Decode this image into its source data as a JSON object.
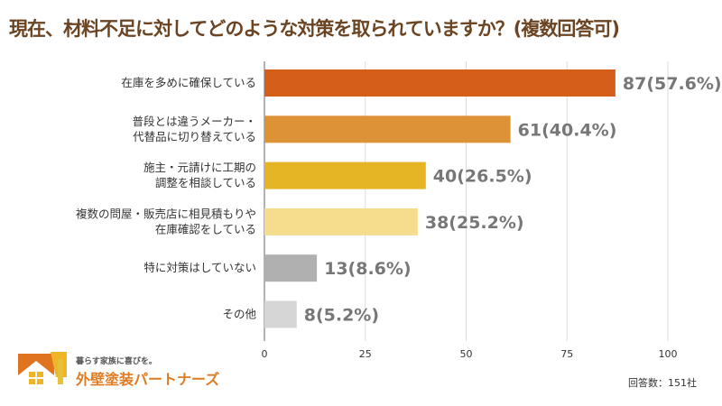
{
  "title": "現在、材料不足に対してどのような対策を取られていますか？(複数回答可)",
  "chart_data": {
    "type": "bar",
    "orientation": "horizontal",
    "title": "現在、材料不足に対してどのような対策を取られていますか？(複数回答可)",
    "categories": [
      [
        "在庫を多めに確保している"
      ],
      [
        "普段とは違うメーカー・",
        "代替品に切り替えている"
      ],
      [
        "施主・元請けに工期の",
        "調整を相談している"
      ],
      [
        "複数の問屋・販売店に相見積もりや",
        "在庫確認をしている"
      ],
      [
        "特に対策はしていない"
      ],
      [
        "その他"
      ]
    ],
    "values": [
      87,
      61,
      40,
      38,
      13,
      8
    ],
    "data_labels": [
      "87(57.6%)",
      "61(40.4%)",
      "40(26.5%)",
      "38(25.2%)",
      "13(8.6%)",
      "8(5.2%)"
    ],
    "colors": [
      "#d55e1a",
      "#dd9235",
      "#e5b526",
      "#f6dd8e",
      "#b0b0b0",
      "#d6d6d6"
    ],
    "xlim": [
      0,
      100
    ],
    "xticks": [
      "0",
      "25",
      "50",
      "75",
      "100"
    ],
    "grid": true
  },
  "note": "回答数：151社",
  "logo": {
    "tagline": "暮らす家族に喜びを。",
    "name": "外壁塗装パートナーズ"
  }
}
